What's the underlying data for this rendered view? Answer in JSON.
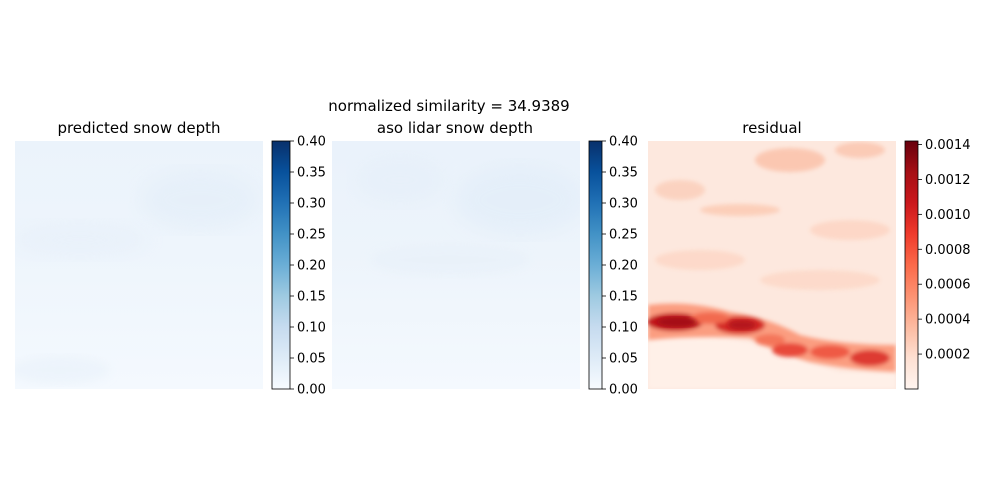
{
  "suptitle": "normalized similarity = 34.9389",
  "chart_data": [
    {
      "type": "heatmap",
      "title": "predicted snow depth",
      "colormap": "Blues",
      "colorbar": {
        "vmin": 0.0,
        "vmax": 0.4,
        "ticks": [
          0.0,
          0.05,
          0.1,
          0.15,
          0.2,
          0.25,
          0.3,
          0.35,
          0.4
        ],
        "tick_labels": [
          "0.00",
          "0.05",
          "0.10",
          "0.15",
          "0.20",
          "0.25",
          "0.30",
          "0.35",
          "0.40"
        ]
      },
      "values_range_estimate": [
        0.0,
        0.04
      ],
      "axes": "off"
    },
    {
      "type": "heatmap",
      "title": "aso lidar snow depth",
      "colormap": "Blues",
      "colorbar": {
        "vmin": 0.0,
        "vmax": 0.4,
        "ticks": [
          0.0,
          0.05,
          0.1,
          0.15,
          0.2,
          0.25,
          0.3,
          0.35,
          0.4
        ],
        "tick_labels": [
          "0.00",
          "0.05",
          "0.10",
          "0.15",
          "0.20",
          "0.25",
          "0.30",
          "0.35",
          "0.40"
        ]
      },
      "values_range_estimate": [
        0.0,
        0.04
      ],
      "axes": "off"
    },
    {
      "type": "heatmap",
      "title": "residual",
      "colormap": "Reds",
      "colorbar": {
        "vmin": 0.0,
        "vmax": 0.00142,
        "ticks": [
          0.0002,
          0.0004,
          0.0006,
          0.0008,
          0.001,
          0.0012,
          0.0014
        ],
        "tick_labels": [
          "0.0002",
          "0.0004",
          "0.0006",
          "0.0008",
          "0.0010",
          "0.0012",
          "0.0014"
        ]
      },
      "axes": "off"
    }
  ]
}
